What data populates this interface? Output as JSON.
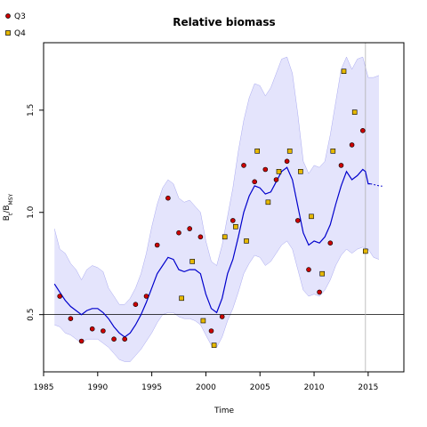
{
  "chart_data": {
    "type": "line",
    "title": "Relative biomass",
    "xlabel": "Time",
    "ylabel": "B_t/B_MSY",
    "ylabel_main": "B",
    "ylabel_sub1": "t",
    "ylabel_slash": "/B",
    "ylabel_sub2": "MSY",
    "xlim": [
      1985,
      2018.3
    ],
    "ylim": [
      0.22,
      1.83
    ],
    "xticks": [
      1985,
      1990,
      1995,
      2000,
      2005,
      2010,
      2015
    ],
    "yticks": [
      0.5,
      1.0,
      1.5
    ],
    "ytick_labels": [
      "0.5",
      "1.0",
      "1.5"
    ],
    "reference_line_y": 0.5,
    "vertical_line_x": 2014.75,
    "colors": {
      "band": "#e4e4fc",
      "band_edge": "#a8a8f0",
      "line": "#0000cc",
      "q3": "#cc0000",
      "q4": "#e6b800"
    },
    "legend": [
      {
        "name": "Q3",
        "color": "#cc0000"
      },
      {
        "name": "Q4",
        "color": "#e6b800"
      }
    ],
    "series": [
      {
        "name": "estimate",
        "x": [
          1986,
          1986.5,
          1987,
          1987.5,
          1988,
          1988.5,
          1989,
          1989.5,
          1990,
          1990.5,
          1991,
          1991.5,
          1992,
          1992.5,
          1993,
          1993.5,
          1994,
          1994.5,
          1995,
          1995.5,
          1996,
          1996.5,
          1997,
          1997.5,
          1998,
          1998.5,
          1999,
          1999.5,
          2000,
          2000.5,
          2001,
          2001.5,
          2002,
          2002.5,
          2003,
          2003.5,
          2004,
          2004.5,
          2005,
          2005.5,
          2006,
          2006.5,
          2007,
          2007.5,
          2008,
          2008.5,
          2009,
          2009.5,
          2010,
          2010.5,
          2011,
          2011.5,
          2012,
          2012.5,
          2013,
          2013.5,
          2014,
          2014.5,
          2014.75,
          2015,
          2015.2
        ],
        "y": [
          0.65,
          0.61,
          0.57,
          0.54,
          0.52,
          0.5,
          0.52,
          0.53,
          0.53,
          0.51,
          0.48,
          0.44,
          0.41,
          0.39,
          0.41,
          0.45,
          0.5,
          0.56,
          0.63,
          0.7,
          0.74,
          0.78,
          0.77,
          0.72,
          0.71,
          0.72,
          0.72,
          0.7,
          0.6,
          0.53,
          0.51,
          0.58,
          0.7,
          0.77,
          0.88,
          1.0,
          1.08,
          1.13,
          1.12,
          1.09,
          1.1,
          1.15,
          1.2,
          1.22,
          1.16,
          1.03,
          0.9,
          0.84,
          0.86,
          0.85,
          0.88,
          0.94,
          1.04,
          1.13,
          1.2,
          1.16,
          1.18,
          1.21,
          1.2,
          1.14,
          1.14
        ]
      },
      {
        "name": "upper",
        "x": [
          1986,
          1986.5,
          1987,
          1987.5,
          1988,
          1988.5,
          1989,
          1989.5,
          1990,
          1990.5,
          1991,
          1991.5,
          1992,
          1992.5,
          1993,
          1993.5,
          1994,
          1994.5,
          1995,
          1995.5,
          1996,
          1996.5,
          1997,
          1997.5,
          1998,
          1998.5,
          1999,
          1999.5,
          2000,
          2000.5,
          2001,
          2001.5,
          2002,
          2002.5,
          2003,
          2003.5,
          2004,
          2004.5,
          2005,
          2005.5,
          2006,
          2006.5,
          2007,
          2007.5,
          2008,
          2008.5,
          2009,
          2009.5,
          2010,
          2010.5,
          2011,
          2011.5,
          2012,
          2012.5,
          2013,
          2013.5,
          2014,
          2014.5,
          2015,
          2015.5,
          2016
        ],
        "y": [
          0.92,
          0.82,
          0.8,
          0.75,
          0.72,
          0.67,
          0.72,
          0.74,
          0.73,
          0.71,
          0.63,
          0.59,
          0.55,
          0.55,
          0.58,
          0.63,
          0.7,
          0.8,
          0.93,
          1.04,
          1.12,
          1.16,
          1.14,
          1.07,
          1.05,
          1.06,
          1.03,
          1.0,
          0.86,
          0.76,
          0.74,
          0.84,
          0.98,
          1.12,
          1.3,
          1.45,
          1.56,
          1.63,
          1.62,
          1.57,
          1.61,
          1.68,
          1.75,
          1.76,
          1.68,
          1.48,
          1.25,
          1.19,
          1.23,
          1.22,
          1.25,
          1.38,
          1.54,
          1.7,
          1.76,
          1.7,
          1.75,
          1.76,
          1.66,
          1.66,
          1.67
        ]
      },
      {
        "name": "lower",
        "x": [
          1986,
          1986.5,
          1987,
          1987.5,
          1988,
          1988.5,
          1989,
          1989.5,
          1990,
          1990.5,
          1991,
          1991.5,
          1992,
          1992.5,
          1993,
          1993.5,
          1994,
          1994.5,
          1995,
          1995.5,
          1996,
          1996.5,
          1997,
          1997.5,
          1998,
          1998.5,
          1999,
          1999.5,
          2000,
          2000.5,
          2001,
          2001.5,
          2002,
          2002.5,
          2003,
          2003.5,
          2004,
          2004.5,
          2005,
          2005.5,
          2006,
          2006.5,
          2007,
          2007.5,
          2008,
          2008.5,
          2009,
          2009.5,
          2010,
          2010.5,
          2011,
          2011.5,
          2012,
          2012.5,
          2013,
          2013.5,
          2014,
          2014.5,
          2015,
          2015.5,
          2016
        ],
        "y": [
          0.45,
          0.44,
          0.41,
          0.4,
          0.38,
          0.36,
          0.38,
          0.38,
          0.38,
          0.36,
          0.34,
          0.31,
          0.28,
          0.27,
          0.27,
          0.3,
          0.33,
          0.37,
          0.41,
          0.46,
          0.5,
          0.51,
          0.51,
          0.49,
          0.48,
          0.48,
          0.47,
          0.45,
          0.4,
          0.35,
          0.34,
          0.39,
          0.47,
          0.53,
          0.61,
          0.7,
          0.75,
          0.79,
          0.78,
          0.74,
          0.76,
          0.8,
          0.84,
          0.86,
          0.82,
          0.72,
          0.62,
          0.59,
          0.6,
          0.59,
          0.62,
          0.67,
          0.74,
          0.79,
          0.82,
          0.8,
          0.82,
          0.83,
          0.82,
          0.78,
          0.77
        ]
      },
      {
        "name": "projection",
        "x": [
          2015.2,
          2015.6,
          2016,
          2016.3
        ],
        "y": [
          1.14,
          1.135,
          1.13,
          1.128
        ]
      },
      {
        "name": "Q3",
        "x": [
          1986.5,
          1987.5,
          1988.5,
          1989.5,
          1990.5,
          1991.5,
          1992.5,
          1993.5,
          1994.5,
          1995.5,
          1996.5,
          1997.5,
          1998.5,
          1999.5,
          2000.5,
          2001.5,
          2002.5,
          2003.5,
          2004.5,
          2005.5,
          2006.5,
          2007.5,
          2008.5,
          2009.5,
          2010.5,
          2011.5,
          2012.5,
          2013.5,
          2014.5
        ],
        "y": [
          0.59,
          0.48,
          0.37,
          0.43,
          0.42,
          0.38,
          0.38,
          0.55,
          0.59,
          0.84,
          1.07,
          0.9,
          0.92,
          0.88,
          0.42,
          0.49,
          0.96,
          1.23,
          1.15,
          1.21,
          1.16,
          1.25,
          0.96,
          0.72,
          0.61,
          0.85,
          1.23,
          1.33,
          1.4
        ]
      },
      {
        "name": "Q4",
        "x": [
          1997.75,
          1998.75,
          1999.75,
          2000.75,
          2001.75,
          2002.75,
          2003.75,
          2004.75,
          2005.75,
          2006.75,
          2007.75,
          2008.75,
          2009.75,
          2010.75,
          2011.75,
          2012.75,
          2013.75,
          2014.75
        ],
        "y": [
          0.58,
          0.76,
          0.47,
          0.35,
          0.88,
          0.93,
          0.86,
          1.3,
          1.05,
          1.2,
          1.3,
          1.2,
          0.98,
          0.7,
          1.3,
          1.69,
          1.49,
          0.81
        ]
      }
    ]
  }
}
